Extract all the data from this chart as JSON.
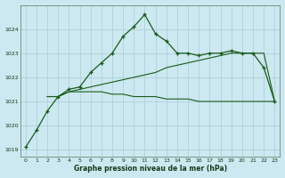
{
  "title": "Graphe pression niveau de la mer (hPa)",
  "bg_color": "#cce8f0",
  "line_color": "#1a5c1a",
  "grid_color": "#aaccd8",
  "ylim": [
    1018.7,
    1025.0
  ],
  "xlim": [
    -0.5,
    23.5
  ],
  "yticks": [
    1019,
    1020,
    1021,
    1022,
    1023,
    1024
  ],
  "xticks": [
    0,
    1,
    2,
    3,
    4,
    5,
    6,
    7,
    8,
    9,
    10,
    11,
    12,
    13,
    14,
    15,
    16,
    17,
    18,
    19,
    20,
    21,
    22,
    23
  ],
  "series1_x": [
    0,
    1,
    2,
    3,
    4,
    5,
    6,
    7,
    8,
    9,
    10,
    11,
    12,
    13,
    14,
    15,
    16,
    17,
    18,
    19,
    20,
    21,
    22,
    23
  ],
  "series1_y": [
    1019.1,
    1019.8,
    1020.6,
    1021.2,
    1021.5,
    1021.6,
    1022.2,
    1022.6,
    1023.0,
    1023.7,
    1024.1,
    1024.6,
    1023.8,
    1023.5,
    1023.0,
    1023.0,
    1022.9,
    1023.0,
    1023.0,
    1023.1,
    1023.0,
    1023.0,
    1022.4,
    1021.0
  ],
  "series2_x": [
    2,
    3,
    4,
    5,
    6,
    7,
    8,
    9,
    10,
    11,
    12,
    13,
    14,
    15,
    16,
    17,
    18,
    19,
    20,
    21,
    22,
    23
  ],
  "series2_y": [
    1021.2,
    1021.2,
    1021.4,
    1021.4,
    1021.4,
    1021.4,
    1021.3,
    1021.3,
    1021.2,
    1021.2,
    1021.2,
    1021.1,
    1021.1,
    1021.1,
    1021.0,
    1021.0,
    1021.0,
    1021.0,
    1021.0,
    1021.0,
    1021.0,
    1021.0
  ],
  "series3_x": [
    2,
    3,
    4,
    5,
    6,
    7,
    8,
    9,
    10,
    11,
    12,
    13,
    14,
    15,
    16,
    17,
    18,
    19,
    20,
    21,
    22,
    23
  ],
  "series3_y": [
    1021.2,
    1021.2,
    1021.4,
    1021.5,
    1021.6,
    1021.7,
    1021.8,
    1021.9,
    1022.0,
    1022.1,
    1022.2,
    1022.4,
    1022.5,
    1022.6,
    1022.7,
    1022.8,
    1022.9,
    1023.0,
    1023.0,
    1023.0,
    1023.0,
    1021.0
  ]
}
